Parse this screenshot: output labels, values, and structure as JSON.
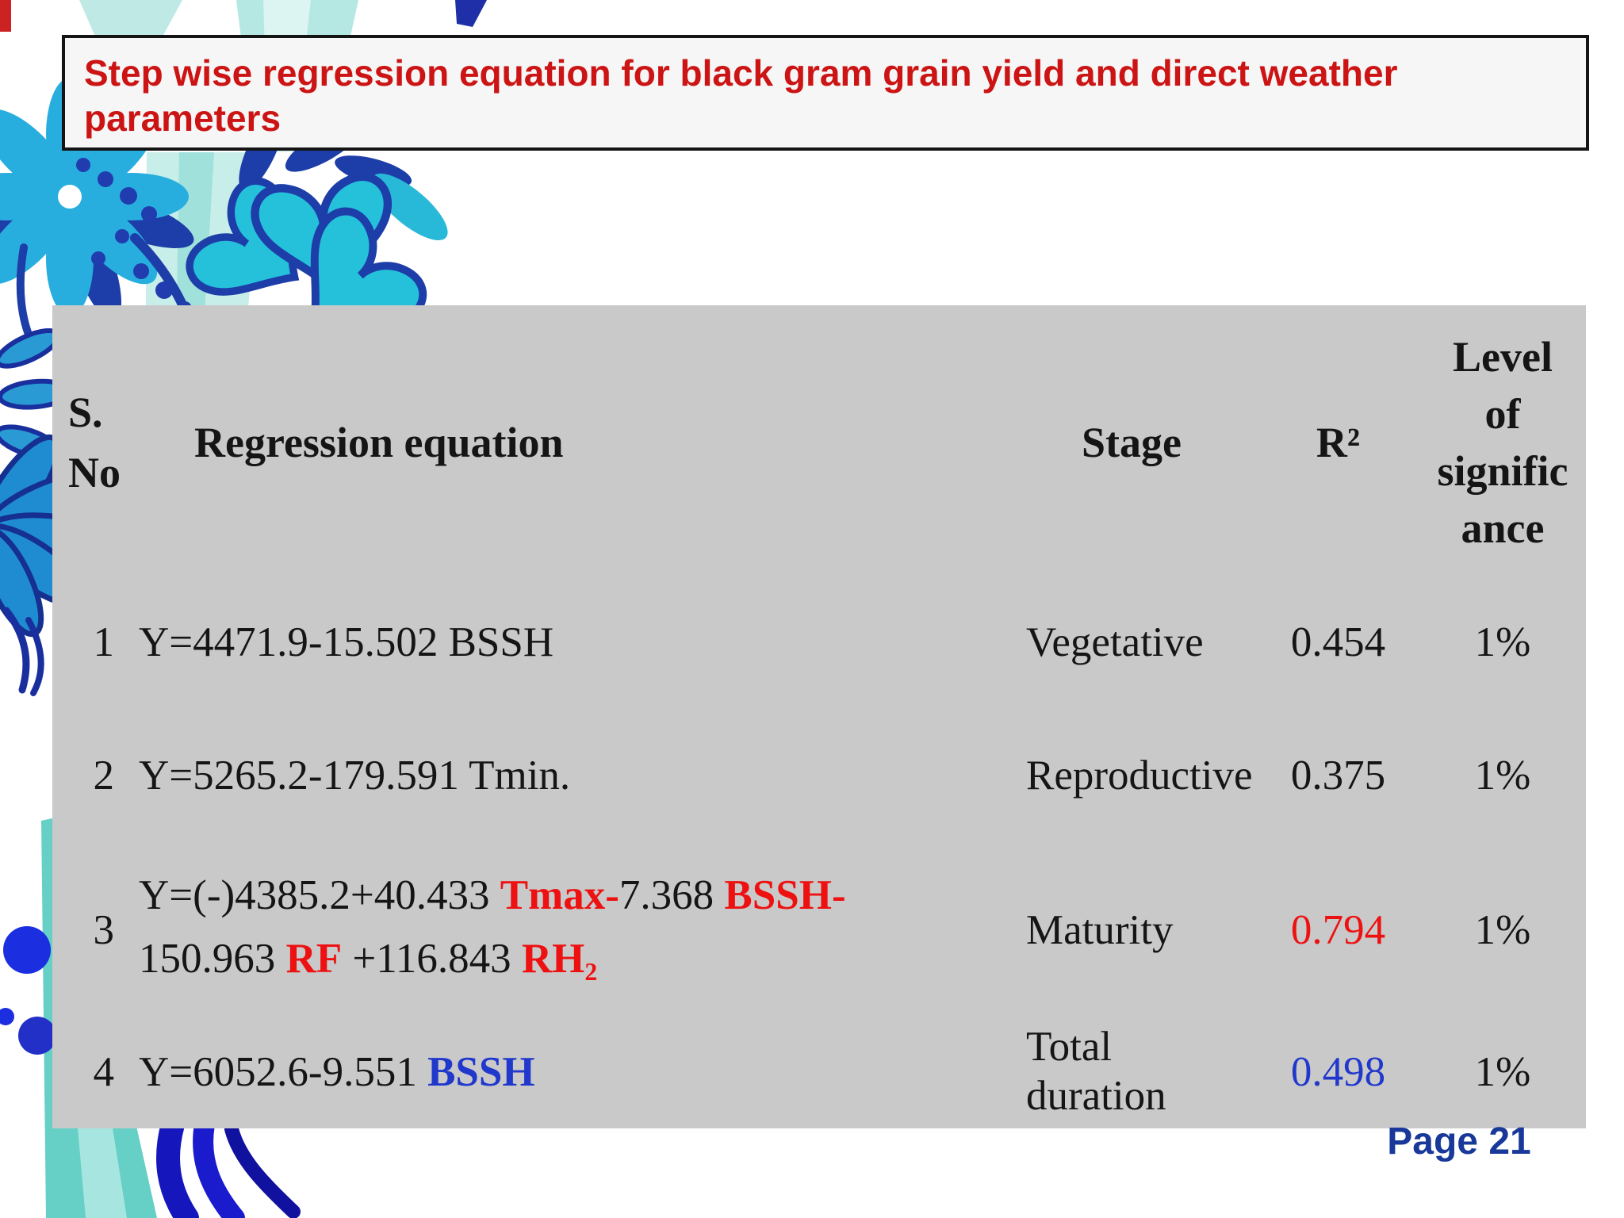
{
  "title": {
    "line1": "Step wise regression equation for black gram grain yield and direct weather",
    "line2": "parameters"
  },
  "page_label": "Page 21",
  "colors": {
    "title_red": "#cc1414",
    "accent_red": "#ee1111",
    "accent_blue": "#2038cc",
    "page_navy": "#18389a",
    "table_bg": "#c9c9c9",
    "title_box_bg": "#f6f6f6"
  },
  "table": {
    "headers": {
      "sno_lines": [
        "S.",
        "No"
      ],
      "equation": "Regression equation",
      "stage": "Stage",
      "r2": "R²",
      "level_lines": [
        "Level",
        "of",
        "signific",
        "ance"
      ]
    },
    "rows": [
      {
        "no": "1",
        "eq": [
          {
            "t": "Y=4471.9-15.502 BSSH",
            "s": "k"
          }
        ],
        "stage": "Vegetative",
        "r2": "0.454",
        "r2_style": "k",
        "level": "1%"
      },
      {
        "no": "2",
        "eq": [
          {
            "t": "Y=5265.2-179.591 Tmin.",
            "s": "k"
          }
        ],
        "stage": "Reproductive",
        "r2": "0.375",
        "r2_style": "k",
        "level": "1%"
      },
      {
        "no": "3",
        "eq": [
          {
            "t": "Y=(-)4385.2+40.433 ",
            "s": "k"
          },
          {
            "t": "Tmax-",
            "s": "r"
          },
          {
            "t": "7.368 ",
            "s": "k"
          },
          {
            "t": "BSSH-",
            "s": "r"
          },
          {
            "br": true
          },
          {
            "t": "150.963 ",
            "s": "k"
          },
          {
            "t": "RF",
            "s": "r"
          },
          {
            "t": " +116.843 ",
            "s": "k"
          },
          {
            "t": "RH",
            "s": "r"
          },
          {
            "t": "2",
            "s": "rsub"
          }
        ],
        "stage": "Maturity",
        "r2": "0.794",
        "r2_style": "r",
        "level": "1%"
      },
      {
        "no": "4",
        "eq": [
          {
            "t": "Y=6052.6-9.551 ",
            "s": "k"
          },
          {
            "t": "BSSH",
            "s": "b"
          }
        ],
        "stage": "Total duration",
        "r2": "0.498",
        "r2_style": "b",
        "level": "1%"
      }
    ]
  }
}
